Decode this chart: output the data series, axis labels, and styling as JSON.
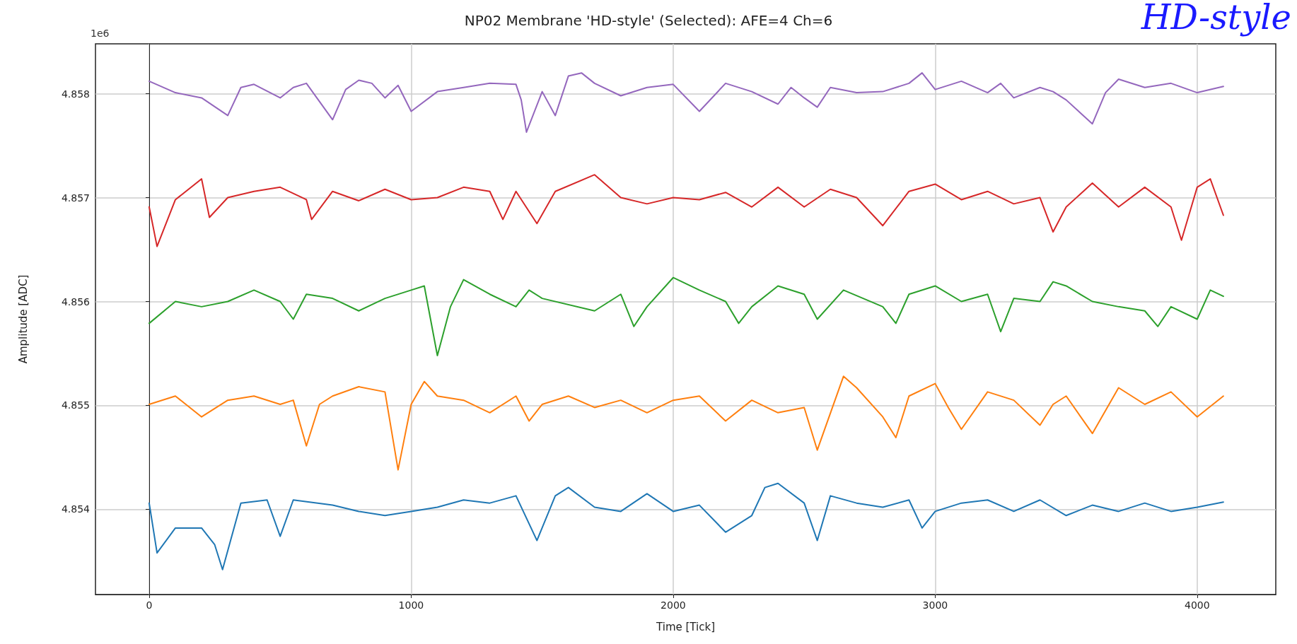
{
  "chart_data": {
    "type": "line",
    "title": "NP02 Membrane 'HD-style' (Selected): AFE=4 Ch=6",
    "xlabel": "Time [Tick]",
    "ylabel": "Amplitude [ADC]",
    "annotations": [
      "1e6",
      "HD-style"
    ],
    "xlim": [
      -205,
      4300
    ],
    "xticks": [
      0,
      1000,
      2000,
      3000,
      4000
    ],
    "ylim": [
      4.85318,
      4.85848
    ],
    "yticks": [
      4.854,
      4.855,
      4.856,
      4.857,
      4.858
    ],
    "grid": true,
    "marker": "none",
    "line_style": "solid",
    "series": [
      {
        "color": "#1f77b4",
        "x": [
          0,
          30,
          100,
          200,
          250,
          280,
          350,
          450,
          500,
          550,
          700,
          800,
          900,
          1000,
          1100,
          1200,
          1300,
          1400,
          1480,
          1550,
          1600,
          1700,
          1800,
          1900,
          2000,
          2100,
          2200,
          2300,
          2350,
          2400,
          2500,
          2550,
          2600,
          2700,
          2800,
          2900,
          2950,
          3000,
          3100,
          3200,
          3300,
          3400,
          3500,
          3600,
          3700,
          3800,
          3900,
          4000,
          4100
        ],
        "values": [
          4.85406,
          4.85358,
          4.85382,
          4.85382,
          4.85366,
          4.85342,
          4.85406,
          4.85409,
          4.85374,
          4.85409,
          4.85404,
          4.85398,
          4.85394,
          4.85398,
          4.85402,
          4.85409,
          4.85406,
          4.85413,
          4.8537,
          4.85413,
          4.85421,
          4.85402,
          4.85398,
          4.85415,
          4.85398,
          4.85404,
          4.85378,
          4.85394,
          4.85421,
          4.85425,
          4.85406,
          4.8537,
          4.85413,
          4.85406,
          4.85402,
          4.85409,
          4.85382,
          4.85398,
          4.85406,
          4.85409,
          4.85398,
          4.85409,
          4.85394,
          4.85404,
          4.85398,
          4.85406,
          4.85398,
          4.85402,
          4.85407
        ]
      },
      {
        "color": "#ff7f0e",
        "x": [
          0,
          100,
          200,
          300,
          400,
          500,
          550,
          600,
          650,
          700,
          800,
          900,
          950,
          1000,
          1050,
          1100,
          1200,
          1300,
          1400,
          1450,
          1500,
          1600,
          1700,
          1800,
          1900,
          2000,
          2100,
          2200,
          2300,
          2400,
          2500,
          2550,
          2650,
          2700,
          2800,
          2850,
          2900,
          3000,
          3050,
          3100,
          3200,
          3300,
          3400,
          3450,
          3500,
          3600,
          3700,
          3800,
          3900,
          4000,
          4100
        ],
        "values": [
          4.85501,
          4.85509,
          4.85489,
          4.85505,
          4.85509,
          4.85501,
          4.85505,
          4.85461,
          4.85501,
          4.85509,
          4.85518,
          4.85513,
          4.85438,
          4.85501,
          4.85523,
          4.85509,
          4.85505,
          4.85493,
          4.85509,
          4.85485,
          4.85501,
          4.85509,
          4.85498,
          4.85505,
          4.85493,
          4.85505,
          4.85509,
          4.85485,
          4.85505,
          4.85493,
          4.85498,
          4.85457,
          4.85528,
          4.85517,
          4.85489,
          4.85469,
          4.85509,
          4.85521,
          4.85498,
          4.85477,
          4.85513,
          4.85505,
          4.85481,
          4.85501,
          4.85509,
          4.85473,
          4.85517,
          4.85501,
          4.85513,
          4.85489,
          4.85509
        ]
      },
      {
        "color": "#2ca02c",
        "x": [
          0,
          100,
          200,
          300,
          400,
          500,
          550,
          600,
          700,
          800,
          900,
          1000,
          1050,
          1100,
          1150,
          1200,
          1300,
          1400,
          1450,
          1500,
          1700,
          1800,
          1850,
          1900,
          2000,
          2100,
          2200,
          2250,
          2300,
          2400,
          2500,
          2550,
          2650,
          2800,
          2850,
          2900,
          3000,
          3100,
          3200,
          3250,
          3300,
          3400,
          3450,
          3500,
          3600,
          3700,
          3800,
          3850,
          3900,
          4000,
          4050,
          4100
        ],
        "values": [
          4.85579,
          4.856,
          4.85595,
          4.856,
          4.85611,
          4.856,
          4.85583,
          4.85607,
          4.85603,
          4.85591,
          4.85603,
          4.85611,
          4.85615,
          4.85548,
          4.85595,
          4.85621,
          4.85607,
          4.85595,
          4.85611,
          4.85603,
          4.85591,
          4.85607,
          4.85576,
          4.85595,
          4.85623,
          4.85611,
          4.856,
          4.85579,
          4.85595,
          4.85615,
          4.85607,
          4.85583,
          4.85611,
          4.85595,
          4.85579,
          4.85607,
          4.85615,
          4.856,
          4.85607,
          4.85571,
          4.85603,
          4.856,
          4.85619,
          4.85615,
          4.856,
          4.85595,
          4.85591,
          4.85576,
          4.85595,
          4.85583,
          4.85611,
          4.85605
        ]
      },
      {
        "color": "#d62728",
        "x": [
          0,
          30,
          100,
          200,
          230,
          300,
          400,
          500,
          600,
          620,
          700,
          800,
          900,
          1000,
          1100,
          1200,
          1300,
          1350,
          1400,
          1480,
          1550,
          1700,
          1800,
          1900,
          2000,
          2100,
          2200,
          2300,
          2400,
          2500,
          2600,
          2700,
          2800,
          2900,
          3000,
          3100,
          3200,
          3300,
          3400,
          3450,
          3500,
          3600,
          3700,
          3800,
          3900,
          3940,
          4000,
          4050,
          4100
        ],
        "values": [
          4.85691,
          4.85653,
          4.85698,
          4.85718,
          4.85681,
          4.857,
          4.85706,
          4.8571,
          4.85698,
          4.85679,
          4.85706,
          4.85697,
          4.85708,
          4.85698,
          4.857,
          4.8571,
          4.85706,
          4.85679,
          4.85706,
          4.85675,
          4.85706,
          4.85722,
          4.857,
          4.85694,
          4.857,
          4.85698,
          4.85705,
          4.85691,
          4.8571,
          4.85691,
          4.85708,
          4.857,
          4.85673,
          4.85706,
          4.85713,
          4.85698,
          4.85706,
          4.85694,
          4.857,
          4.85667,
          4.85691,
          4.85714,
          4.85691,
          4.8571,
          4.85691,
          4.85659,
          4.8571,
          4.85718,
          4.85683
        ]
      },
      {
        "color": "#9467bd",
        "x": [
          0,
          100,
          200,
          300,
          350,
          400,
          500,
          550,
          600,
          700,
          750,
          800,
          850,
          900,
          950,
          1000,
          1100,
          1200,
          1300,
          1400,
          1420,
          1440,
          1500,
          1550,
          1600,
          1650,
          1700,
          1800,
          1900,
          2000,
          2100,
          2200,
          2300,
          2400,
          2450,
          2500,
          2550,
          2600,
          2700,
          2800,
          2900,
          2950,
          3000,
          3100,
          3200,
          3250,
          3300,
          3400,
          3450,
          3500,
          3600,
          3650,
          3700,
          3800,
          3900,
          4000,
          4100
        ],
        "values": [
          4.85812,
          4.85801,
          4.85796,
          4.85779,
          4.85806,
          4.85809,
          4.85796,
          4.85806,
          4.8581,
          4.85775,
          4.85804,
          4.85813,
          4.8581,
          4.85796,
          4.85808,
          4.85783,
          4.85802,
          4.85806,
          4.8581,
          4.85809,
          4.85794,
          4.85763,
          4.85802,
          4.85779,
          4.85817,
          4.8582,
          4.8581,
          4.85798,
          4.85806,
          4.85809,
          4.85783,
          4.8581,
          4.85802,
          4.8579,
          4.85806,
          4.85796,
          4.85787,
          4.85806,
          4.85801,
          4.85802,
          4.8581,
          4.8582,
          4.85804,
          4.85812,
          4.85801,
          4.8581,
          4.85796,
          4.85806,
          4.85802,
          4.85794,
          4.85771,
          4.85801,
          4.85814,
          4.85806,
          4.8581,
          4.85801,
          4.85807
        ]
      }
    ]
  }
}
